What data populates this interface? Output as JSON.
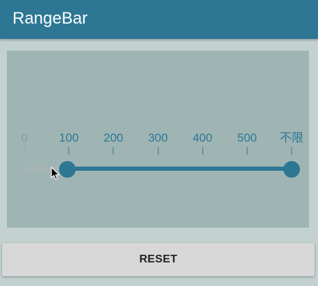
{
  "app_bar": {
    "title": "RangeBar"
  },
  "range_bar": {
    "tick_labels": [
      "0",
      "100",
      "200",
      "300",
      "400",
      "500",
      "不限"
    ],
    "selected_start_tick": 1,
    "selected_end_tick": 6,
    "colors": {
      "accent": "#2d7794",
      "inactive_label": "#8a9a9b",
      "inactive_tick": "#8ea6a6",
      "track": "#a8b4b4"
    }
  },
  "reset_button": {
    "label": "RESET"
  }
}
